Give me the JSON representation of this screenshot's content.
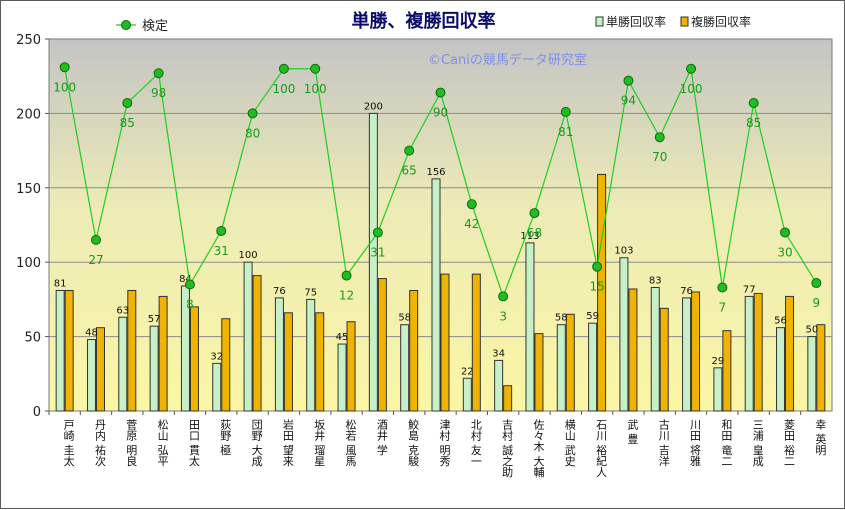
{
  "chart_data": {
    "type": "bar",
    "title": "単勝、複勝回収率",
    "watermark": "©Caniの競馬データ研究室",
    "ylim": [
      0,
      250
    ],
    "yticks": [
      0,
      50,
      100,
      150,
      200,
      250
    ],
    "grid": true,
    "legend_position": "top",
    "categories": [
      "戸崎 圭太",
      "丹内 祐次",
      "菅原 明良",
      "松山 弘平",
      "田口 貫太",
      "荻野 極",
      "団野 大成",
      "岩田 望来",
      "坂井 瑠星",
      "松若 風馬",
      "酒井 学",
      "鮫島 克駿",
      "津村 明秀",
      "北村 友一",
      "吉村 誠之助",
      "佐々木 大輔",
      "横山 武史",
      "石川 裕紀人",
      "武 豊",
      "古川 吉洋",
      "川田 将雅",
      "和田 竜二",
      "三浦 皇成",
      "菱田 裕二",
      "幸 英明"
    ],
    "series": [
      {
        "name": "単勝回収率",
        "type": "bar",
        "color": "#c8f0c8",
        "values": [
          81,
          48,
          63,
          57,
          84,
          32,
          100,
          76,
          75,
          45,
          200,
          58,
          156,
          22,
          34,
          113,
          58,
          59,
          103,
          83,
          76,
          29,
          77,
          56,
          50
        ],
        "value_labels": [
          "81",
          "48",
          "63",
          "57",
          "84",
          "32",
          "100",
          "76",
          "75",
          "45",
          "200",
          "58",
          "156",
          "22",
          "34",
          "113",
          "58",
          "59",
          "103",
          "83",
          "76",
          "29",
          "77",
          "56",
          "50"
        ]
      },
      {
        "name": "複勝回収率",
        "type": "bar",
        "color": "#f0b400",
        "values": [
          81,
          56,
          81,
          77,
          70,
          62,
          91,
          66,
          66,
          60,
          89,
          81,
          92,
          92,
          17,
          52,
          65,
          159,
          82,
          69,
          80,
          54,
          79,
          77,
          58
        ]
      },
      {
        "name": "検定",
        "type": "line",
        "color": "#22cc22",
        "values": [
          231,
          115,
          207,
          227,
          85,
          121,
          200,
          230,
          230,
          91,
          120,
          175,
          214,
          139,
          77,
          133,
          201,
          97,
          222,
          184,
          230,
          83,
          207,
          120,
          86
        ],
        "value_labels": [
          "100",
          "27",
          "85",
          "98",
          "8",
          "31",
          "80",
          "100",
          "100",
          "12",
          "31",
          "65",
          "90",
          "42",
          "3",
          "68",
          "81",
          "15",
          "94",
          "70",
          "100",
          "7",
          "85",
          "30",
          "9"
        ]
      }
    ]
  }
}
